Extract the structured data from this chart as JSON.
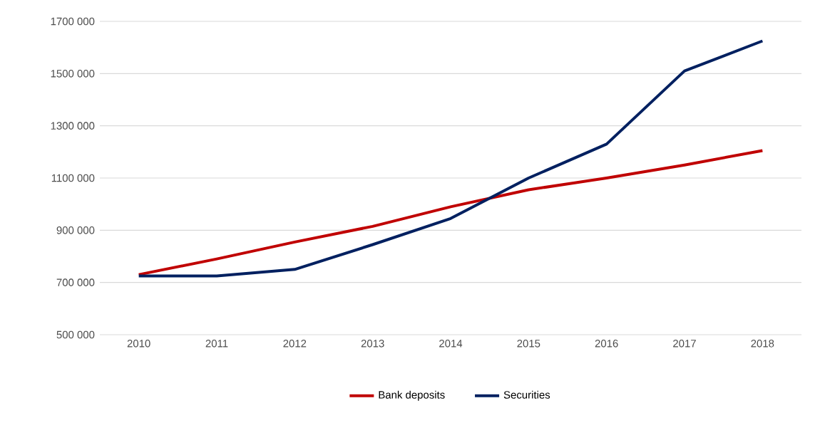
{
  "chart_data": {
    "type": "line",
    "categories": [
      "2010",
      "2011",
      "2012",
      "2013",
      "2014",
      "2015",
      "2016",
      "2017",
      "2018"
    ],
    "series": [
      {
        "name": "Bank deposits",
        "color": "#c00000",
        "values": [
          730000,
          790000,
          855000,
          915000,
          990000,
          1055000,
          1100000,
          1150000,
          1205000
        ]
      },
      {
        "name": "Securities",
        "color": "#002060",
        "values": [
          725000,
          725000,
          750000,
          845000,
          945000,
          1100000,
          1230000,
          1510000,
          1625000
        ]
      }
    ],
    "ylim": [
      500000,
      1700000
    ],
    "yticks": [
      {
        "value": 500000,
        "label": "500 000"
      },
      {
        "value": 700000,
        "label": "700 000"
      },
      {
        "value": 900000,
        "label": "900 000"
      },
      {
        "value": 1100000,
        "label": "1100 000"
      },
      {
        "value": 1300000,
        "label": "1300 000"
      },
      {
        "value": 1500000,
        "label": "1500 000"
      },
      {
        "value": 1700000,
        "label": "1700 000"
      }
    ],
    "grid": "y",
    "legend": "bottom",
    "marker": "none",
    "line_style": "solid"
  }
}
